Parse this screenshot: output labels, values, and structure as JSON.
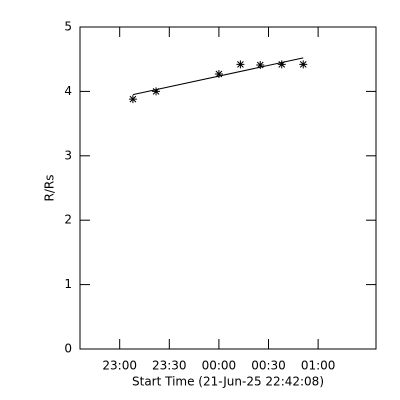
{
  "chart_data": {
    "type": "scatter",
    "x_label": "Start Time (21-Jun-25 22:42:08)",
    "y_label": "R/Rs",
    "x": [
      1388,
      1402,
      1440,
      1453,
      1465,
      1478,
      1491
    ],
    "values": [
      3.88,
      4.0,
      4.27,
      4.42,
      4.41,
      4.42,
      4.42
    ],
    "fit": {
      "x": [
        1388,
        1491
      ],
      "values": [
        3.95,
        4.52
      ]
    },
    "color": "#000000",
    "xlim": [
      1356,
      1535
    ],
    "xticks": [
      {
        "value": 1380,
        "label": "23:00"
      },
      {
        "value": 1410,
        "label": "23:30"
      },
      {
        "value": 1440,
        "label": "00:00"
      },
      {
        "value": 1470,
        "label": "00:30"
      },
      {
        "value": 1500,
        "label": "01:00"
      }
    ],
    "ylim": [
      0,
      5
    ],
    "yticks": [
      0,
      1,
      2,
      3,
      4,
      5
    ]
  }
}
